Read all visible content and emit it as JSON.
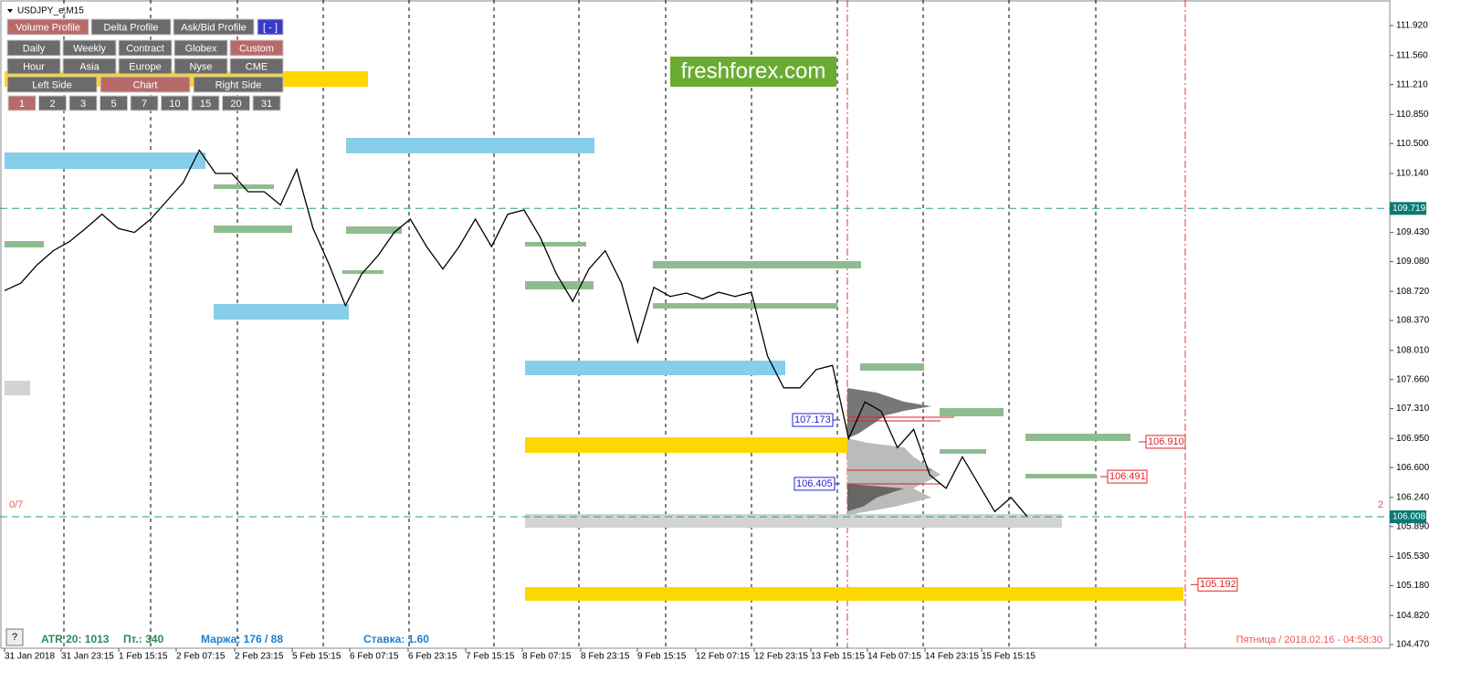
{
  "window": {
    "title": "USDJPY_e,M15"
  },
  "toolbar": {
    "row1": [
      "Volume Profile",
      "Delta Profile",
      "Ask/Bid Profile",
      "[ - ]"
    ],
    "row2": [
      "Daily",
      "Weekly",
      "Contract",
      "Globex",
      "Custom"
    ],
    "row3": [
      "Hour",
      "Asia",
      "Europe",
      "Nyse",
      "CME"
    ],
    "row4": [
      "Left Side",
      "Chart",
      "Right Side"
    ],
    "row5": [
      "1",
      "2",
      "3",
      "5",
      "7",
      "10",
      "15",
      "20",
      "31"
    ]
  },
  "watermark": "freshforex.com",
  "chart": {
    "type": "line",
    "values": [
      108.73,
      108.82,
      109.04,
      109.21,
      109.32,
      109.48,
      109.65,
      109.48,
      109.43,
      109.59,
      109.81,
      110.03,
      110.42,
      110.14,
      110.14,
      109.92,
      109.92,
      109.76,
      110.19,
      109.48,
      109.04,
      108.55,
      108.93,
      109.15,
      109.43,
      109.59,
      109.26,
      108.99,
      109.26,
      109.59,
      109.26,
      109.65,
      109.7,
      109.37,
      108.93,
      108.6,
      108.99,
      109.21,
      108.82,
      108.11,
      108.77,
      108.66,
      108.7,
      108.63,
      108.71,
      108.66,
      108.71,
      107.94,
      107.56,
      107.56,
      107.78,
      107.83,
      106.95,
      107.39,
      107.28,
      106.84,
      107.06,
      106.51,
      106.35,
      106.73,
      106.4,
      106.07,
      106.24,
      106.01
    ],
    "ylim": [
      104.47,
      111.92
    ],
    "yticks": [
      {
        "value": 111.92,
        "label": "111.920"
      },
      {
        "value": 111.56,
        "label": "111.560"
      },
      {
        "value": 111.21,
        "label": "111.210"
      },
      {
        "value": 110.85,
        "label": "110.850"
      },
      {
        "value": 110.5,
        "label": "110.500"
      },
      {
        "value": 110.14,
        "label": "110.140"
      },
      {
        "value": 109.43,
        "label": "109.430"
      },
      {
        "value": 109.08,
        "label": "109.080"
      },
      {
        "value": 108.72,
        "label": "108.720"
      },
      {
        "value": 108.37,
        "label": "108.370"
      },
      {
        "value": 108.01,
        "label": "108.010"
      },
      {
        "value": 107.66,
        "label": "107.660"
      },
      {
        "value": 107.31,
        "label": "107.310"
      },
      {
        "value": 106.95,
        "label": "106.950"
      },
      {
        "value": 106.6,
        "label": "106.600"
      },
      {
        "value": 106.24,
        "label": "106.240"
      },
      {
        "value": 105.89,
        "label": "105.890"
      },
      {
        "value": 105.53,
        "label": "105.530"
      },
      {
        "value": 105.18,
        "label": "105.180"
      },
      {
        "value": 104.82,
        "label": "104.820"
      },
      {
        "value": 104.47,
        "label": "104.470"
      }
    ],
    "categories": [
      "31 Jan 2018",
      "31 Jan 23:15",
      "1 Feb 15:15",
      "2 Feb 07:15",
      "2 Feb 23:15",
      "5 Feb 15:15",
      "6 Feb 07:15",
      "6 Feb 23:15",
      "7 Feb 15:15",
      "8 Feb 07:15",
      "8 Feb 23:15",
      "9 Feb 15:15",
      "12 Feb 07:15",
      "12 Feb 23:15",
      "13 Feb 15:15",
      "14 Feb 07:15",
      "14 Feb 23:15",
      "15 Feb 15:15"
    ],
    "marker_levels": [
      109.719,
      106.008
    ],
    "blue_levels": [
      107.173,
      106.405
    ],
    "red_levels": [
      {
        "value": 106.91,
        "label": "106.910"
      },
      106.491,
      105.192
    ]
  },
  "status": {
    "left_count": "0/7",
    "right_count": "2",
    "help": "?",
    "atr": "ATR 20: 1013",
    "pt": "Пт.: 340",
    "margin": "Маржа: 176 / 88",
    "rate": "Ставка: 1.60",
    "datetime": "Пятница / 2018.02.16 - 04:58:30"
  }
}
